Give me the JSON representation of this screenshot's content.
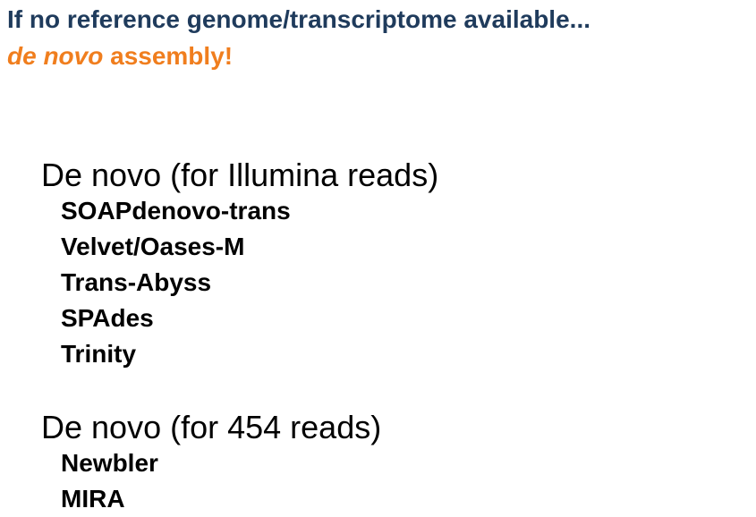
{
  "title": {
    "line1": "If no reference genome/transcriptome available...",
    "line2_italic": "de novo",
    "line2_rest": " assembly!"
  },
  "sections": [
    {
      "heading": "De novo (for Illumina reads)",
      "items": [
        "SOAPdenovo-trans",
        "Velvet/Oases-M",
        "Trans-Abyss",
        "SPAdes",
        "Trinity"
      ]
    },
    {
      "heading": "De novo (for 454 reads)",
      "items": [
        "Newbler",
        "MIRA"
      ]
    }
  ],
  "colors": {
    "title_dark_blue": "#1f3b5c",
    "title_orange": "#f07e1e",
    "text": "#000000"
  }
}
